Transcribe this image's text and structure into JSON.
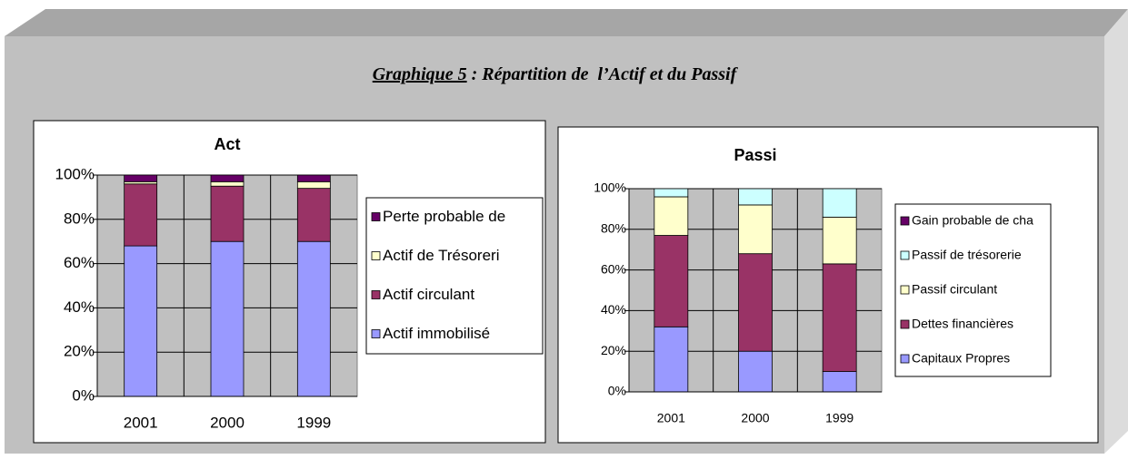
{
  "title": {
    "label": "Graphique 5",
    "rest": " : Répartition de  l’Actif et du Passif"
  },
  "chart_data": [
    {
      "type": "stacked-bar",
      "title": "Act",
      "categories": [
        "2001",
        "2000",
        "1999"
      ],
      "series": [
        {
          "name": "Actif immobilisé",
          "color": "#9999ff",
          "values": [
            68,
            70,
            70
          ]
        },
        {
          "name": "Actif circulant",
          "color": "#993366",
          "values": [
            28,
            25,
            24
          ]
        },
        {
          "name": "Actif de Trésoreri",
          "color": "#ffffcc",
          "values": [
            1,
            2,
            3
          ]
        },
        {
          "name": "Perte probable de",
          "color": "#660066",
          "values": [
            3,
            3,
            3
          ]
        }
      ],
      "ylim": [
        0,
        100
      ],
      "yticks": [
        {
          "value": 0,
          "label": "0%"
        },
        {
          "value": 20,
          "label": "20%"
        },
        {
          "value": 40,
          "label": "40%"
        },
        {
          "value": 60,
          "label": "60%"
        },
        {
          "value": 80,
          "label": "80%"
        },
        {
          "value": 100,
          "label": "100%"
        }
      ],
      "grid": true
    },
    {
      "type": "stacked-bar",
      "title": "Passi",
      "categories": [
        "2001",
        "2000",
        "1999"
      ],
      "series": [
        {
          "name": "Capitaux Propres",
          "color": "#9999ff",
          "values": [
            32,
            20,
            10
          ]
        },
        {
          "name": "Dettes financières",
          "color": "#993366",
          "values": [
            45,
            48,
            53
          ]
        },
        {
          "name": "Passif circulant",
          "color": "#ffffcc",
          "values": [
            19,
            24,
            23
          ]
        },
        {
          "name": "Passif de trésorerie",
          "color": "#ccffff",
          "values": [
            4,
            8,
            14
          ]
        },
        {
          "name": "Gain probable de cha",
          "color": "#660066",
          "values": [
            0,
            0,
            0
          ]
        }
      ],
      "ylim": [
        0,
        100
      ],
      "yticks": [
        {
          "value": 0,
          "label": "0%"
        },
        {
          "value": 20,
          "label": "20%"
        },
        {
          "value": 40,
          "label": "40%"
        },
        {
          "value": 60,
          "label": "60%"
        },
        {
          "value": 80,
          "label": "80%"
        },
        {
          "value": 100,
          "label": "100%"
        }
      ],
      "grid": true
    }
  ]
}
